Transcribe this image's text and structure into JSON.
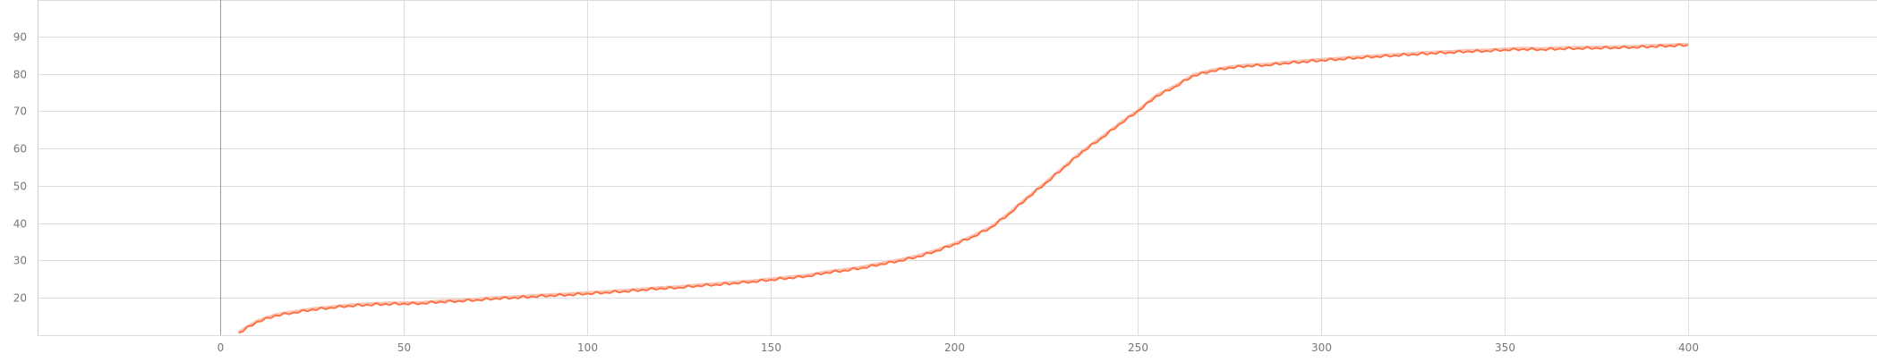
{
  "chart_data": {
    "type": "line",
    "title": "",
    "xlabel": "",
    "ylabel": "",
    "xlim": [
      -50,
      450
    ],
    "ylim": [
      10,
      98
    ],
    "x_ticks": [
      0,
      50,
      100,
      150,
      200,
      250,
      300,
      350,
      400
    ],
    "y_ticks": [
      20,
      30,
      40,
      50,
      60,
      70,
      80,
      90
    ],
    "x_tick_labels": [
      "0",
      "50",
      "100",
      "150",
      "200",
      "250",
      "300",
      "350",
      "400"
    ],
    "y_tick_labels": [
      "20",
      "30",
      "40",
      "50",
      "60",
      "70",
      "80",
      "90"
    ],
    "grid": true,
    "legend": "none",
    "series": [
      {
        "color": "#ff7043",
        "smoothed_color": "#fbc3b3",
        "x": [
          5,
          10,
          15,
          20,
          25,
          30,
          35,
          40,
          45,
          50,
          55,
          60,
          65,
          70,
          75,
          80,
          85,
          90,
          95,
          100,
          105,
          110,
          115,
          120,
          125,
          130,
          135,
          140,
          145,
          150,
          155,
          160,
          165,
          170,
          175,
          180,
          185,
          190,
          195,
          200,
          205,
          210,
          215,
          220,
          225,
          230,
          235,
          240,
          245,
          250,
          255,
          260,
          265,
          270,
          275,
          280,
          285,
          290,
          295,
          300,
          305,
          310,
          315,
          320,
          325,
          330,
          335,
          340,
          345,
          350,
          355,
          360,
          365,
          370,
          375,
          380,
          385,
          390,
          395,
          400
        ],
        "values": [
          10.5,
          13.5,
          15.2,
          16.0,
          16.8,
          17.3,
          17.8,
          18.1,
          18.3,
          18.4,
          18.5,
          18.9,
          19.1,
          19.4,
          19.8,
          20.0,
          20.3,
          20.6,
          20.8,
          21.1,
          21.4,
          21.7,
          22.1,
          22.5,
          22.7,
          23.2,
          23.5,
          23.9,
          24.3,
          24.8,
          25.3,
          25.8,
          26.7,
          27.3,
          28.0,
          29.0,
          29.9,
          31.0,
          32.5,
          34.3,
          36.3,
          38.8,
          42.5,
          46.8,
          50.8,
          55.0,
          59.2,
          62.7,
          66.5,
          70.0,
          74.0,
          76.5,
          79.5,
          80.8,
          81.7,
          82.2,
          82.4,
          82.9,
          83.3,
          83.7,
          84.0,
          84.4,
          84.7,
          85.0,
          85.3,
          85.6,
          85.8,
          86.1,
          86.2,
          86.5,
          86.7,
          86.6,
          86.8,
          86.9,
          87.0,
          87.1,
          87.2,
          87.4,
          87.6,
          87.8
        ]
      }
    ]
  }
}
